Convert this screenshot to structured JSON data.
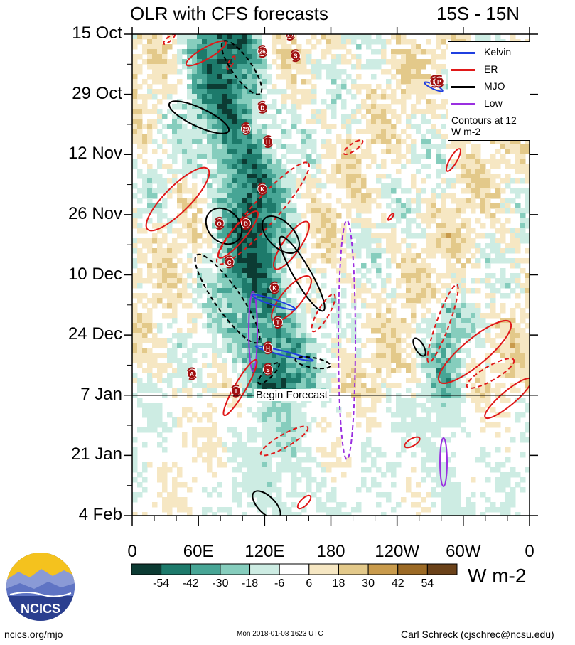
{
  "header": {
    "title": "OLR with CFS forecasts",
    "region": "15S - 15N"
  },
  "chart_data": {
    "type": "heatmap",
    "title": "OLR with CFS forecasts",
    "region": "15S - 15N",
    "xlabel": "",
    "ylabel": "",
    "x_ticks": [
      "0",
      "60E",
      "120E",
      "180",
      "120W",
      "60W",
      "0"
    ],
    "x_range_deg_east": [
      0,
      360
    ],
    "y_ticks": [
      "15 Oct",
      "29 Oct",
      "12 Nov",
      "26 Nov",
      "10 Dec",
      "24 Dec",
      "7 Jan",
      "21 Jan",
      "4 Feb"
    ],
    "y_range": [
      "15 Oct",
      "4 Feb"
    ],
    "forecast_line": {
      "date": "7 Jan",
      "label": "Begin Forecast"
    },
    "colorbar": {
      "labels": [
        "-54",
        "-42",
        "-30",
        "-18",
        "-6",
        "6",
        "18",
        "30",
        "42",
        "54"
      ],
      "units": "W m-2",
      "colors": [
        "#0c3b33",
        "#1d7a6b",
        "#47a595",
        "#86cdbd",
        "#cdece3",
        "#ffffff",
        "#f6e7c3",
        "#e3c98a",
        "#c99b4c",
        "#9c6a25",
        "#6b4219"
      ]
    },
    "legend": {
      "placement": "top-right",
      "entries": [
        {
          "name": "Kelvin",
          "color": "#1f3fe0"
        },
        {
          "name": "ER",
          "color": "#e01818"
        },
        {
          "name": "MJO",
          "color": "#000000"
        },
        {
          "name": "Low",
          "color": "#9a2fe0"
        }
      ],
      "note": "Contours at 12 W m-2"
    },
    "storms": [
      {
        "label": "S",
        "lon": 148,
        "date": "20 Oct"
      },
      {
        "label": "25",
        "lon": 143,
        "date": "15 Oct"
      },
      {
        "label": "26",
        "lon": 118,
        "date": "19 Oct"
      },
      {
        "label": "D",
        "lon": 118,
        "date": "1 Nov"
      },
      {
        "label": "29",
        "lon": 103,
        "date": "6 Nov"
      },
      {
        "label": "H",
        "lon": 123,
        "date": "9 Nov"
      },
      {
        "label": "K",
        "lon": 118,
        "date": "20 Nov"
      },
      {
        "label": "O",
        "lon": 79,
        "date": "28 Nov"
      },
      {
        "label": "D",
        "lon": 103,
        "date": "28 Nov"
      },
      {
        "label": "C",
        "lon": 88,
        "date": "7 Dec"
      },
      {
        "label": "K",
        "lon": 129,
        "date": "13 Dec"
      },
      {
        "label": "T",
        "lon": 132,
        "date": "21 Dec"
      },
      {
        "label": "H",
        "lon": 123,
        "date": "27 Dec"
      },
      {
        "label": "A",
        "lon": 54,
        "date": "2 Jan"
      },
      {
        "label": "S",
        "lon": 123,
        "date": "1 Jan"
      },
      {
        "label": "I",
        "lon": 94,
        "date": "6 Jan"
      },
      {
        "label": "S",
        "lon": 274,
        "date": "26 Oct"
      },
      {
        "label": "P",
        "lon": 278,
        "date": "26 Oct"
      }
    ]
  },
  "footer": {
    "site": "ncics.org/mjo",
    "timestamp": "Mon 2018-01-08 1623 UTC",
    "author": "Carl Schreck (cjschrec@ncsu.edu)",
    "logo_text": "NCICS"
  }
}
